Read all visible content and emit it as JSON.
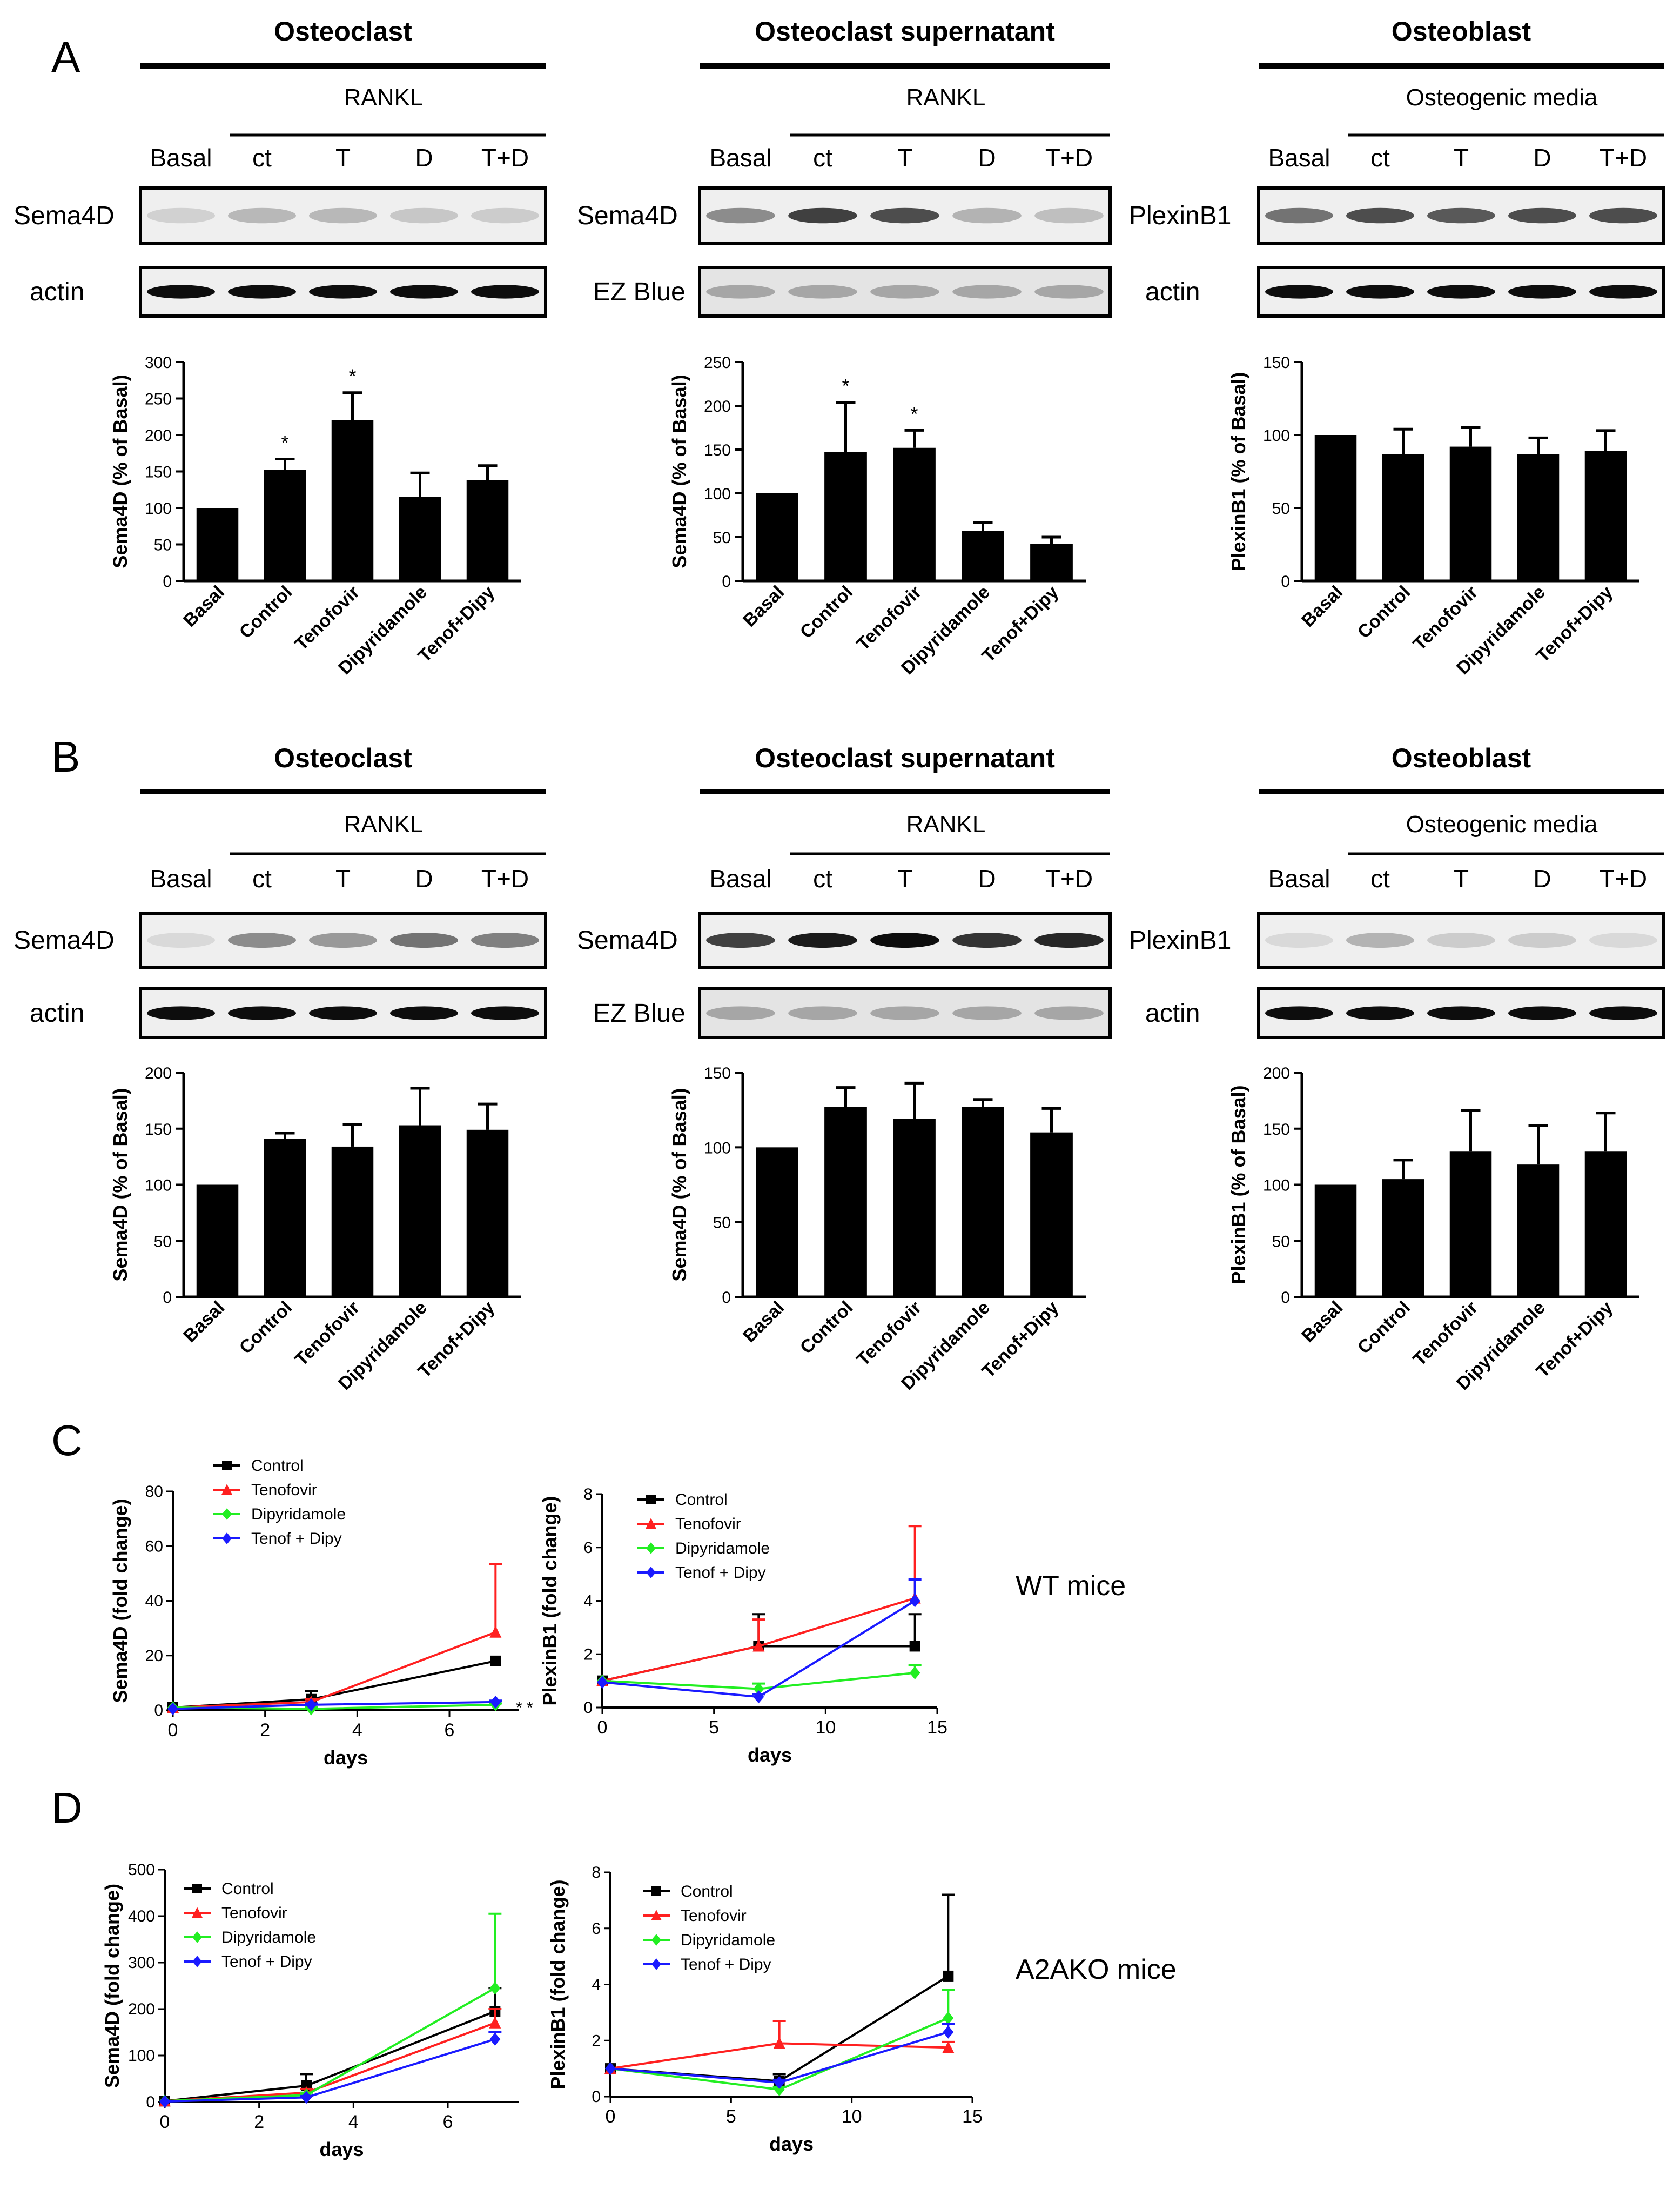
{
  "panels": {
    "A": "A",
    "B": "B",
    "C": "C",
    "D": "D"
  },
  "common": {
    "lanes": [
      "Basal",
      "ct",
      "T",
      "D",
      "T+D"
    ],
    "treatment_rankl": "RANKL",
    "treatment_osteogenic": "Osteogenic media",
    "categories": [
      "Basal",
      "Control",
      "Tenofovir",
      "Dipyridamole",
      "Tenof+Dipy"
    ]
  },
  "blocks": [
    {
      "panel": "A",
      "title": "Osteoclast",
      "treatment": "RANKL",
      "band1_label": "Sema4D",
      "band2_label": "actin",
      "chart_ylabel": "Sema4D (% of Basal)",
      "ymax": 300,
      "ticks": [
        0,
        50,
        100,
        150,
        200,
        250,
        300
      ],
      "values": [
        100,
        152,
        220,
        115,
        138
      ],
      "errors": [
        0,
        15,
        38,
        33,
        20
      ],
      "stars": [
        "",
        "*",
        "*",
        "",
        ""
      ]
    },
    {
      "panel": "A",
      "title": "Osteoclast  supernatant",
      "treatment": "RANKL",
      "band1_label": "Sema4D",
      "band2_label": "EZ Blue",
      "chart_ylabel": "Sema4D (% of Basal)",
      "ymax": 250,
      "ticks": [
        0,
        50,
        100,
        150,
        200,
        250
      ],
      "values": [
        100,
        147,
        152,
        57,
        42
      ],
      "errors": [
        0,
        57,
        20,
        10,
        8
      ],
      "stars": [
        "",
        "*",
        "*",
        "",
        ""
      ]
    },
    {
      "panel": "A",
      "title": "Osteoblast",
      "treatment": "Osteogenic media",
      "band1_label": "PlexinB1",
      "band2_label": "actin",
      "chart_ylabel": "PlexinB1 (% of Basal)",
      "ymax": 150,
      "ticks": [
        0,
        50,
        100,
        150
      ],
      "values": [
        100,
        87,
        92,
        87,
        89
      ],
      "errors": [
        0,
        17,
        13,
        11,
        14
      ],
      "stars": [
        "",
        "",
        "",
        "",
        ""
      ]
    },
    {
      "panel": "B",
      "title": "Osteoclast",
      "treatment": "RANKL",
      "band1_label": "Sema4D",
      "band2_label": "actin",
      "chart_ylabel": "Sema4D (% of Basal)",
      "ymax": 200,
      "ticks": [
        0,
        50,
        100,
        150,
        200
      ],
      "values": [
        100,
        141,
        134,
        153,
        149
      ],
      "errors": [
        0,
        5,
        20,
        33,
        23
      ],
      "stars": [
        "",
        "",
        "",
        "",
        ""
      ]
    },
    {
      "panel": "B",
      "title": "Osteoclast  supernatant",
      "treatment": "RANKL",
      "band1_label": "Sema4D",
      "band2_label": "EZ Blue",
      "chart_ylabel": "Sema4D (% of Basal)",
      "ymax": 150,
      "ticks": [
        0,
        50,
        100,
        150
      ],
      "values": [
        100,
        127,
        119,
        127,
        110
      ],
      "errors": [
        0,
        13,
        24,
        5,
        16
      ],
      "stars": [
        "",
        "",
        "",
        "",
        ""
      ]
    },
    {
      "panel": "B",
      "title": "Osteoblast",
      "treatment": "Osteogenic media",
      "band1_label": "PlexinB1",
      "band2_label": "actin",
      "chart_ylabel": "PlexinB1 (% of Basal)",
      "ymax": 200,
      "ticks": [
        0,
        50,
        100,
        150,
        200
      ],
      "values": [
        100,
        105,
        130,
        118,
        130
      ],
      "errors": [
        0,
        17,
        36,
        35,
        34
      ],
      "stars": [
        "",
        "",
        "",
        "",
        ""
      ]
    }
  ],
  "chart_data": [
    {
      "type": "bar",
      "title": "Osteoclast",
      "ylabel": "Sema4D (% of Basal)",
      "ylim": [
        0,
        300
      ],
      "categories": [
        "Basal",
        "Control",
        "Tenofovir",
        "Dipyridamole",
        "Tenof+Dipy"
      ],
      "values": [
        100,
        152,
        220,
        115,
        138
      ],
      "errors": [
        0,
        15,
        38,
        33,
        20
      ]
    },
    {
      "type": "bar",
      "title": "Osteoclast  supernatant",
      "ylabel": "Sema4D (% of Basal)",
      "ylim": [
        0,
        250
      ],
      "categories": [
        "Basal",
        "Control",
        "Tenofovir",
        "Dipyridamole",
        "Tenof+Dipy"
      ],
      "values": [
        100,
        147,
        152,
        57,
        42
      ],
      "errors": [
        0,
        57,
        20,
        10,
        8
      ]
    },
    {
      "type": "bar",
      "title": "Osteoblast",
      "ylabel": "PlexinB1 (% of Basal)",
      "ylim": [
        0,
        150
      ],
      "categories": [
        "Basal",
        "Control",
        "Tenofovir",
        "Dipyridamole",
        "Tenof+Dipy"
      ],
      "values": [
        100,
        87,
        92,
        87,
        89
      ],
      "errors": [
        0,
        17,
        13,
        11,
        14
      ]
    },
    {
      "type": "bar",
      "title": "Osteoclast",
      "ylabel": "Sema4D (% of Basal)",
      "ylim": [
        0,
        200
      ],
      "categories": [
        "Basal",
        "Control",
        "Tenofovir",
        "Dipyridamole",
        "Tenof+Dipy"
      ],
      "values": [
        100,
        141,
        134,
        153,
        149
      ],
      "errors": [
        0,
        5,
        20,
        33,
        23
      ]
    },
    {
      "type": "bar",
      "title": "Osteoclast  supernatant",
      "ylabel": "Sema4D (% of Basal)",
      "ylim": [
        0,
        150
      ],
      "categories": [
        "Basal",
        "Control",
        "Tenofovir",
        "Dipyridamole",
        "Tenof+Dipy"
      ],
      "values": [
        100,
        127,
        119,
        127,
        110
      ],
      "errors": [
        0,
        13,
        24,
        5,
        16
      ]
    },
    {
      "type": "bar",
      "title": "Osteoblast",
      "ylabel": "PlexinB1 (% of Basal)",
      "ylim": [
        0,
        200
      ],
      "categories": [
        "Basal",
        "Control",
        "Tenofovir",
        "Dipyridamole",
        "Tenof+Dipy"
      ],
      "values": [
        100,
        105,
        130,
        118,
        130
      ],
      "errors": [
        0,
        17,
        36,
        35,
        34
      ]
    },
    {
      "type": "line",
      "panel": "C",
      "xlabel": "days",
      "ylabel": "Sema4D (fold change)",
      "xlim": [
        0,
        7.5
      ],
      "ylim": [
        0,
        80
      ],
      "xticks": [
        0,
        2,
        4,
        6
      ],
      "yticks": [
        0,
        20,
        40,
        60,
        80
      ],
      "stars": "* *",
      "series": [
        {
          "name": "Control",
          "color": "#000000",
          "marker": "square",
          "x": [
            0,
            3,
            7
          ],
          "y": [
            1,
            4,
            18
          ],
          "err": [
            0,
            3,
            0
          ]
        },
        {
          "name": "Tenofovir",
          "color": "#ff2020",
          "marker": "triangle",
          "x": [
            0,
            3,
            7
          ],
          "y": [
            1,
            3,
            28.5
          ],
          "err": [
            0,
            1,
            25
          ]
        },
        {
          "name": "Dipyridamole",
          "color": "#22ee22",
          "marker": "diamond",
          "x": [
            0,
            3,
            7
          ],
          "y": [
            1,
            0.5,
            2
          ],
          "err": [
            0,
            0.5,
            0.5
          ]
        },
        {
          "name": "Tenof + Dipy",
          "color": "#1a1aff",
          "marker": "diamond",
          "x": [
            0,
            3,
            7
          ],
          "y": [
            0.5,
            2,
            3
          ],
          "err": [
            0,
            0.5,
            0.5
          ]
        }
      ]
    },
    {
      "type": "line",
      "panel": "C",
      "xlabel": "days",
      "ylabel": "PlexinB1 (fold change)",
      "xlim": [
        0,
        15
      ],
      "ylim": [
        0,
        8
      ],
      "xticks": [
        0,
        5,
        10,
        15
      ],
      "yticks": [
        0,
        2,
        4,
        6,
        8
      ],
      "stars": "",
      "series": [
        {
          "name": "Control",
          "color": "#000000",
          "marker": "square",
          "x": [
            0,
            7,
            14
          ],
          "y": [
            1,
            2.3,
            2.3
          ],
          "err": [
            0,
            1.2,
            1.2
          ]
        },
        {
          "name": "Tenofovir",
          "color": "#ff2020",
          "marker": "triangle",
          "x": [
            0,
            7,
            14
          ],
          "y": [
            1,
            2.3,
            4.1
          ],
          "err": [
            0,
            1,
            2.7
          ]
        },
        {
          "name": "Dipyridamole",
          "color": "#22ee22",
          "marker": "diamond",
          "x": [
            0,
            7,
            14
          ],
          "y": [
            1,
            0.7,
            1.3
          ],
          "err": [
            0,
            0.2,
            0.3
          ]
        },
        {
          "name": "Tenof + Dipy",
          "color": "#1a1aff",
          "marker": "diamond",
          "x": [
            0,
            7,
            14
          ],
          "y": [
            0.95,
            0.4,
            4
          ],
          "err": [
            0,
            0.1,
            0.8
          ]
        }
      ]
    },
    {
      "type": "line",
      "panel": "D",
      "xlabel": "days",
      "ylabel": "Sema4D (fold change)",
      "xlim": [
        0,
        7.5
      ],
      "ylim": [
        0,
        500
      ],
      "xticks": [
        0,
        2,
        4,
        6
      ],
      "yticks": [
        0,
        100,
        200,
        300,
        400,
        500
      ],
      "stars": "",
      "series": [
        {
          "name": "Control",
          "color": "#000000",
          "marker": "square",
          "x": [
            0,
            3,
            7
          ],
          "y": [
            2,
            35,
            195
          ],
          "err": [
            0,
            25,
            50
          ]
        },
        {
          "name": "Tenofovir",
          "color": "#ff2020",
          "marker": "triangle",
          "x": [
            0,
            3,
            7
          ],
          "y": [
            2,
            20,
            170
          ],
          "err": [
            0,
            8,
            30
          ]
        },
        {
          "name": "Dipyridamole",
          "color": "#22ee22",
          "marker": "diamond",
          "x": [
            0,
            3,
            7
          ],
          "y": [
            2,
            15,
            245
          ],
          "err": [
            0,
            5,
            160
          ]
        },
        {
          "name": "Tenof + Dipy",
          "color": "#1a1aff",
          "marker": "diamond",
          "x": [
            0,
            3,
            7
          ],
          "y": [
            1,
            10,
            135
          ],
          "err": [
            0,
            3,
            15
          ]
        }
      ]
    },
    {
      "type": "line",
      "panel": "D",
      "xlabel": "days",
      "ylabel": "PlexinB1 (fold change)",
      "xlim": [
        0,
        15
      ],
      "ylim": [
        0,
        8
      ],
      "xticks": [
        0,
        5,
        10,
        15
      ],
      "yticks": [
        0,
        2,
        4,
        6,
        8
      ],
      "stars": "",
      "series": [
        {
          "name": "Control",
          "color": "#000000",
          "marker": "square",
          "x": [
            0,
            7,
            14
          ],
          "y": [
            1,
            0.55,
            4.3
          ],
          "err": [
            0,
            0.25,
            2.9
          ]
        },
        {
          "name": "Tenofovir",
          "color": "#ff2020",
          "marker": "triangle",
          "x": [
            0,
            7,
            14
          ],
          "y": [
            1,
            1.9,
            1.75
          ],
          "err": [
            0,
            0.8,
            0.2
          ]
        },
        {
          "name": "Dipyridamole",
          "color": "#22ee22",
          "marker": "diamond",
          "x": [
            0,
            7,
            14
          ],
          "y": [
            1,
            0.25,
            2.8
          ],
          "err": [
            0,
            0.1,
            1
          ]
        },
        {
          "name": "Tenof + Dipy",
          "color": "#1a1aff",
          "marker": "diamond",
          "x": [
            0,
            7,
            14
          ],
          "y": [
            1,
            0.5,
            2.3
          ],
          "err": [
            0,
            0.1,
            0.3
          ]
        }
      ]
    }
  ],
  "mouse_labels": {
    "C": "WT mice",
    "D": "A2AKO mice"
  }
}
